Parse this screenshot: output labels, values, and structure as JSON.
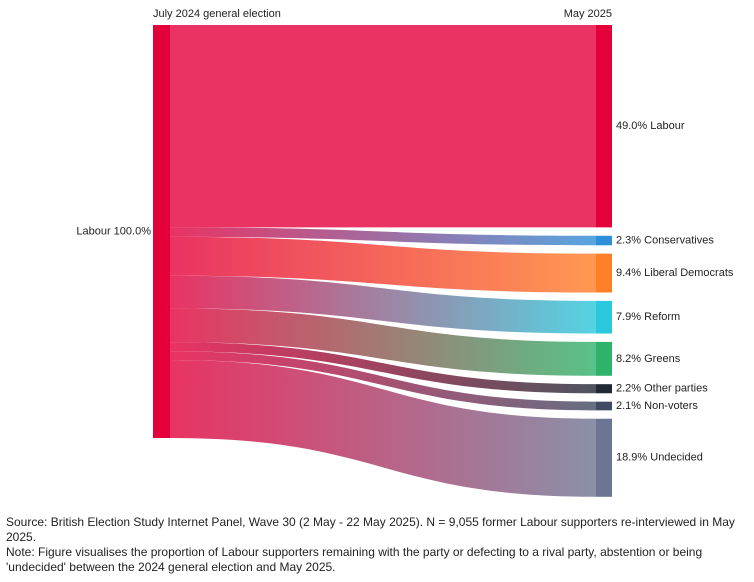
{
  "chart_data": {
    "type": "sankey",
    "column_labels": [
      "July 2024 general election",
      "May 2025"
    ],
    "source": {
      "value": 100.0,
      "value_label": "Labour 100.0%",
      "color": "#e4003b"
    },
    "values": [
      49.0,
      2.3,
      9.4,
      7.9,
      8.2,
      2.2,
      2.1,
      18.9
    ],
    "value_labels": [
      "49.0% Labour",
      "2.3% Conservatives",
      "9.4% Liberal Democrats",
      "7.9% Reform",
      "8.2% Greens",
      "2.2% Other parties",
      "2.1% Non-voters",
      "18.9% Undecided"
    ],
    "colors": [
      "#e4003b",
      "#2d8fd8",
      "#ff7f27",
      "#2ac8dc",
      "#2eb36a",
      "#222a35",
      "#404a63",
      "#6d7594"
    ]
  },
  "notes": [
    "Source: British Election Study Internet Panel, Wave 30 (2 May - 22 May 2025). N = 9,055 former Labour supporters re-interviewed in May 2025.",
    "Note: Figure visualises the proportion of Labour supporters remaining with the party or defecting to a rival party, abstention or being 'undecided' between the 2024 general election and May 2025."
  ]
}
